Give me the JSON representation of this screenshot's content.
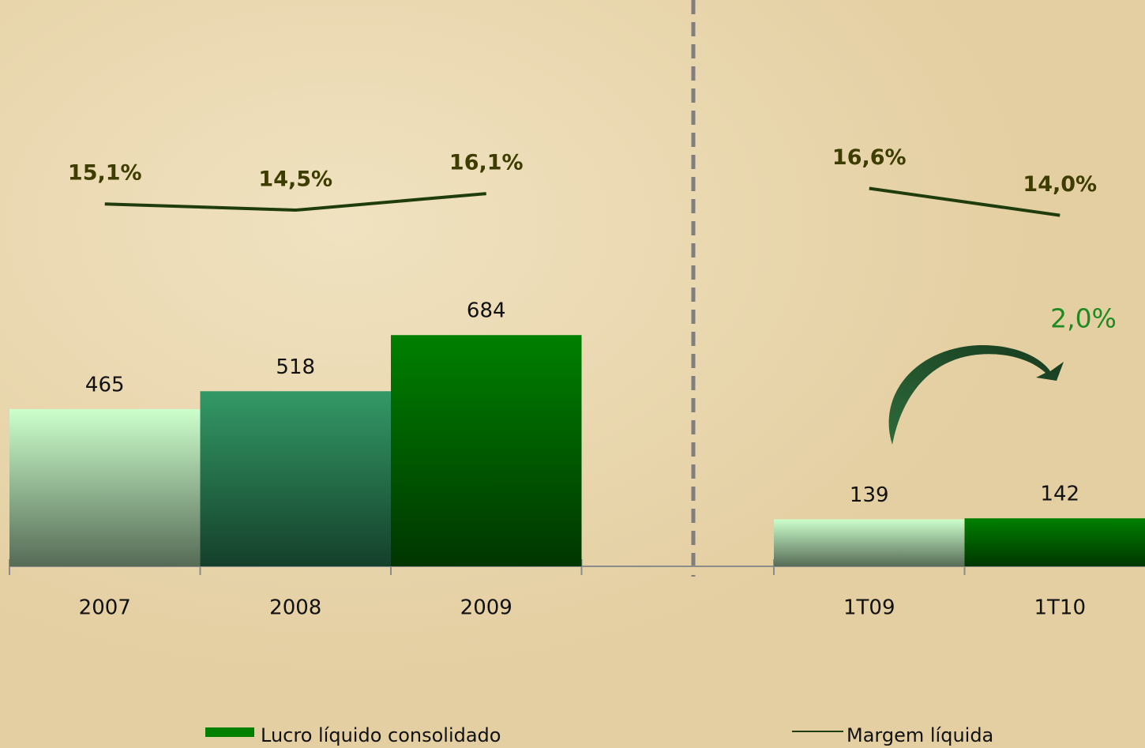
{
  "chart_data": [
    {
      "type": "bar",
      "categories": [
        "2007",
        "2008",
        "2009"
      ],
      "series": [
        {
          "values": [
            465,
            518,
            684
          ],
          "colors": [
            "#ccffcc",
            "#339966",
            "#008000"
          ]
        },
        {
          "type": "line",
          "axis": "y2",
          "color": "#1f3d0c",
          "values": [
            15.1,
            14.5,
            16.1
          ],
          "value_labels": [
            "15,1%",
            "14,5%",
            "16,1%"
          ]
        }
      ],
      "ylim": [
        0,
        1000
      ],
      "y2lim": [
        0,
        20
      ]
    },
    {
      "type": "bar",
      "categories": [
        "1T09",
        "1T10"
      ],
      "series": [
        {
          "name": "Lucro líquido consolidado",
          "color": "#008000",
          "values": [
            139,
            142
          ],
          "colors": [
            "#ccffcc",
            "#008000"
          ]
        },
        {
          "name": "Margem líquida",
          "type": "line",
          "axis": "y2",
          "color": "#1f3d0c",
          "values": [
            16.6,
            14.0
          ],
          "value_labels": [
            "16,6%",
            "14,0%"
          ]
        }
      ],
      "ylim": [
        0,
        1000
      ],
      "y2lim": [
        0,
        20
      ],
      "annotation": "2,0%"
    }
  ]
}
